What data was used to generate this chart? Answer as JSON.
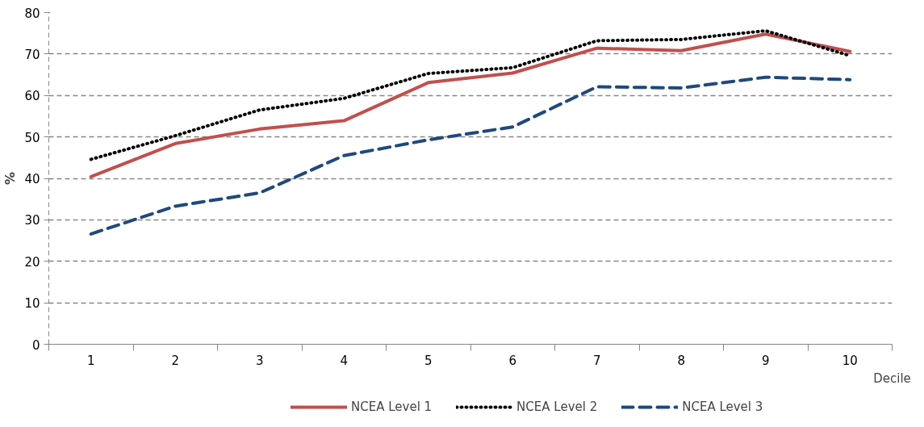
{
  "chart_data": {
    "type": "line",
    "xlabel": "Decile",
    "ylabel": "%",
    "categories": [
      "1",
      "2",
      "3",
      "4",
      "5",
      "6",
      "7",
      "8",
      "9",
      "10"
    ],
    "series": [
      {
        "name": "NCEA Level 1",
        "color": "#c0504d",
        "line_style": "solid",
        "values": [
          40.4,
          48.4,
          51.9,
          53.9,
          63.1,
          65.4,
          71.4,
          70.8,
          74.8,
          70.6
        ]
      },
      {
        "name": "NCEA Level 2",
        "color": "#000000",
        "line_style": "dotted",
        "values": [
          44.6,
          50.3,
          56.5,
          59.3,
          65.3,
          66.7,
          73.2,
          73.5,
          75.6,
          69.6
        ]
      },
      {
        "name": "NCEA Level 3",
        "color": "#1f497d",
        "line_style": "dashed",
        "values": [
          26.6,
          33.3,
          36.5,
          45.5,
          49.3,
          52.4,
          62.1,
          61.8,
          64.4,
          63.8
        ]
      }
    ],
    "ylim": [
      0,
      80
    ],
    "yticks": [
      0,
      10,
      20,
      30,
      40,
      50,
      60,
      70,
      80
    ],
    "grid": "y",
    "legend": "bottom",
    "marker": "none"
  }
}
